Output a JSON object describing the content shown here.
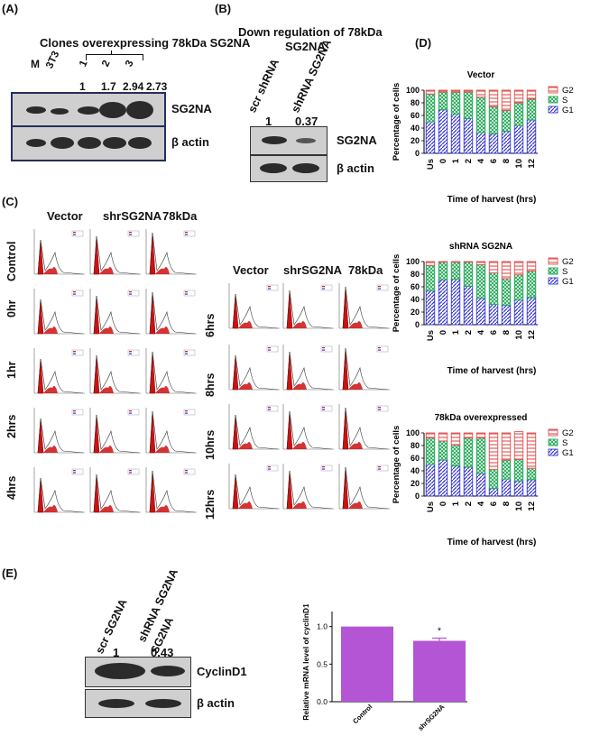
{
  "panels": {
    "A": "(A)",
    "B": "(B)",
    "C": "(C)",
    "D": "(D)",
    "E": "(E)"
  },
  "panelA": {
    "title": "Clones overexpressing 78kDa SG2NA",
    "lanes": [
      "M",
      "3T3",
      "1",
      "2",
      "3"
    ],
    "values": [
      "1",
      "1.7",
      "2.94",
      "2.73"
    ],
    "labels": [
      "SG2NA",
      "β actin"
    ]
  },
  "panelB": {
    "title_line1": "Down regulation of 78kDa",
    "title_line2": "SG2NA",
    "lanes": [
      "scr shRNA",
      "shRNA SG2NA"
    ],
    "values": [
      "1",
      "0.37"
    ],
    "labels": [
      "SG2NA",
      "β actin"
    ]
  },
  "panelC": {
    "cols_top": [
      "Vector",
      "shrSG2NA",
      "78kDa"
    ],
    "rows_left": [
      "Control",
      "0hr",
      "1hr",
      "2hrs",
      "4hrs"
    ],
    "cols_right": [
      "Vector",
      "shrSG2NA",
      "78kDa"
    ],
    "rows_right": [
      "6hrs",
      "8hrs",
      "10hrs",
      "12hrs"
    ]
  },
  "chart_data": [
    {
      "type": "bar",
      "title": "Vector",
      "ylabel": "Percentage of cells",
      "xlabel": "Time of harvest (hrs)",
      "categories": [
        "Us",
        "0",
        "1",
        "2",
        "4",
        "6",
        "8",
        "10",
        "12"
      ],
      "ylim": [
        0,
        100
      ],
      "legend": "right",
      "series": [
        {
          "name": "G1",
          "values": [
            50,
            69,
            62,
            55,
            33,
            31,
            35,
            44,
            53
          ]
        },
        {
          "name": "S",
          "values": [
            44,
            28,
            35,
            42,
            56,
            43,
            33,
            36,
            33
          ]
        },
        {
          "name": "G2",
          "values": [
            6,
            3,
            3,
            3,
            11,
            26,
            32,
            20,
            14
          ]
        }
      ],
      "colors": {
        "G2": "#e05050",
        "S": "#27a85a",
        "G1": "#3a3ad0"
      }
    },
    {
      "type": "bar",
      "title": "shRNA SG2NA",
      "ylabel": "Percentage of cells",
      "xlabel": "Time of harvest (hrs)",
      "categories": [
        "Us",
        "0",
        "1",
        "2",
        "4",
        "6",
        "8",
        "10",
        "12"
      ],
      "ylim": [
        0,
        100
      ],
      "legend": "right",
      "series": [
        {
          "name": "G1",
          "values": [
            54,
            71,
            72,
            61,
            42,
            32,
            31,
            39,
            43
          ]
        },
        {
          "name": "S",
          "values": [
            40,
            28,
            27,
            38,
            53,
            50,
            42,
            40,
            42
          ]
        },
        {
          "name": "G2",
          "values": [
            6,
            1,
            1,
            1,
            5,
            18,
            27,
            21,
            15
          ]
        }
      ],
      "colors": {
        "G2": "#e05050",
        "S": "#27a85a",
        "G1": "#3a3ad0"
      }
    },
    {
      "type": "bar",
      "title": "78kDa overexpressed",
      "ylabel": "Percentage of cells",
      "xlabel": "Time of harvest (hrs)",
      "categories": [
        "Us",
        "0",
        "1",
        "2",
        "4",
        "6",
        "8",
        "10",
        "12"
      ],
      "ylim": [
        0,
        100
      ],
      "legend": "right",
      "series": [
        {
          "name": "G1",
          "values": [
            50,
            57,
            48,
            46,
            36,
            12,
            27,
            24,
            26
          ]
        },
        {
          "name": "S",
          "values": [
            42,
            30,
            33,
            46,
            56,
            30,
            30,
            34,
            18
          ]
        },
        {
          "name": "G2",
          "values": [
            8,
            13,
            19,
            8,
            8,
            58,
            43,
            44,
            56
          ]
        }
      ],
      "colors": {
        "G2": "#e05050",
        "S": "#27a85a",
        "G1": "#3a3ad0"
      }
    },
    {
      "type": "bar",
      "title": "",
      "ylabel": "Relative mRNA level of cyclinD1",
      "xlabel": "",
      "categories": [
        "Control",
        "shrSG2NA"
      ],
      "values": [
        1.0,
        0.81
      ],
      "ylim": [
        0,
        1.2
      ],
      "yticks": [
        "0.0",
        "0.5",
        "1.0"
      ],
      "annotation": "*",
      "color": "#b455d6"
    }
  ],
  "panelE": {
    "lanes": [
      "scr SG2NA",
      "shRNA SG2NA"
    ],
    "values": [
      "1",
      "0.43"
    ],
    "labels": [
      "CyclinD1",
      "β actin"
    ]
  }
}
